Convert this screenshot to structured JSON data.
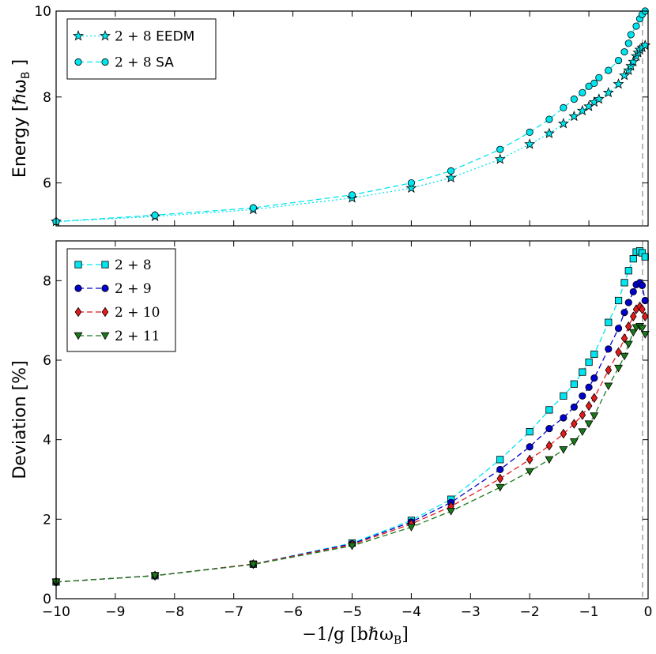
{
  "chart_data": [
    {
      "type": "line",
      "panel": "top",
      "title": "",
      "xlabel": "",
      "ylabel": "Energy [ħω_B]",
      "ylabel_display": "Energy [ℏω",
      "ylabel_sub": "B",
      "ylabel_close": "]",
      "xlim": [
        -10,
        0
      ],
      "ylim": [
        5,
        10
      ],
      "xticks": [
        -10,
        -9,
        -8,
        -7,
        -6,
        -5,
        -4,
        -3,
        -2,
        -1,
        0
      ],
      "yticks": [
        6,
        8,
        10
      ],
      "ytick_labels": [
        "6",
        "8",
        "10"
      ],
      "grid": false,
      "legend_position": "top-left",
      "series": [
        {
          "name": "2+8 EEDM",
          "math": "2 + 8",
          "text": "EEDM",
          "color": "#00e5ee",
          "marker": "star",
          "linestyle": "dotted",
          "x": [
            -10,
            -8.33,
            -6.67,
            -5,
            -4,
            -3.33,
            -2.5,
            -2,
            -1.67,
            -1.43,
            -1.25,
            -1.11,
            -1,
            -0.91,
            -0.83,
            -0.67,
            -0.5,
            -0.4,
            -0.33,
            -0.29,
            -0.25,
            -0.2,
            -0.17,
            -0.14,
            -0.1,
            -0.05
          ],
          "values": [
            5.1,
            5.22,
            5.38,
            5.65,
            5.88,
            6.12,
            6.55,
            6.9,
            7.15,
            7.38,
            7.55,
            7.68,
            7.78,
            7.88,
            7.95,
            8.1,
            8.3,
            8.5,
            8.62,
            8.72,
            8.82,
            8.95,
            9.03,
            9.1,
            9.15,
            9.2
          ]
        },
        {
          "name": "2+8 SA",
          "math": "2 + 8",
          "text": "SA",
          "color": "#00e5ee",
          "marker": "circle",
          "linestyle": "dashed",
          "x": [
            -10,
            -8.33,
            -6.67,
            -5,
            -4,
            -3.33,
            -2.5,
            -2,
            -1.67,
            -1.43,
            -1.25,
            -1.11,
            -1,
            -0.91,
            -0.83,
            -0.67,
            -0.5,
            -0.4,
            -0.33,
            -0.29,
            -0.2,
            -0.14,
            -0.1,
            -0.05
          ],
          "values": [
            5.1,
            5.25,
            5.42,
            5.72,
            6.0,
            6.28,
            6.78,
            7.18,
            7.48,
            7.75,
            7.95,
            8.1,
            8.25,
            8.32,
            8.45,
            8.62,
            8.85,
            9.05,
            9.25,
            9.45,
            9.65,
            9.82,
            9.92,
            10.0
          ]
        }
      ]
    },
    {
      "type": "line",
      "panel": "bottom",
      "title": "",
      "xlabel": "−1/g [bħω_B]",
      "xlabel_display": "−1/g [bℏω",
      "xlabel_sub": "B",
      "xlabel_close": "]",
      "ylabel": "Deviation [%]",
      "xlim": [
        -10,
        0
      ],
      "ylim": [
        0,
        9
      ],
      "xticks": [
        -10,
        -9,
        -8,
        -7,
        -6,
        -5,
        -4,
        -3,
        -2,
        -1,
        0
      ],
      "xtick_labels": [
        "−10",
        "−9",
        "−8",
        "−7",
        "−6",
        "−5",
        "−4",
        "−3",
        "−2",
        "−1",
        "0"
      ],
      "yticks": [
        0,
        2,
        4,
        6,
        8
      ],
      "ytick_labels": [
        "0",
        "2",
        "4",
        "6",
        "8"
      ],
      "grid": false,
      "legend_position": "top-left",
      "series": [
        {
          "name": "2+8",
          "color": "#00e5ee",
          "marker": "square",
          "linestyle": "dashed",
          "x": [
            -10,
            -8.33,
            -6.67,
            -5,
            -4,
            -3.33,
            -2.5,
            -2,
            -1.67,
            -1.43,
            -1.25,
            -1.11,
            -1,
            -0.91,
            -0.67,
            -0.5,
            -0.4,
            -0.33,
            -0.25,
            -0.2,
            -0.14,
            -0.1,
            -0.05
          ],
          "values": [
            0.42,
            0.58,
            0.87,
            1.4,
            1.97,
            2.5,
            3.5,
            4.2,
            4.75,
            5.1,
            5.4,
            5.7,
            5.95,
            6.15,
            6.95,
            7.5,
            7.95,
            8.25,
            8.55,
            8.72,
            8.75,
            8.7,
            8.6
          ]
        },
        {
          "name": "2+9",
          "color": "#0000cd",
          "marker": "circle",
          "linestyle": "dashed",
          "x": [
            -10,
            -8.33,
            -6.67,
            -5,
            -4,
            -3.33,
            -2.5,
            -2,
            -1.67,
            -1.43,
            -1.25,
            -1.11,
            -1,
            -0.91,
            -0.67,
            -0.5,
            -0.4,
            -0.33,
            -0.25,
            -0.2,
            -0.14,
            -0.1,
            -0.05
          ],
          "values": [
            0.42,
            0.58,
            0.87,
            1.38,
            1.93,
            2.42,
            3.25,
            3.82,
            4.28,
            4.55,
            4.82,
            5.1,
            5.32,
            5.55,
            6.28,
            6.8,
            7.2,
            7.45,
            7.72,
            7.9,
            7.95,
            7.88,
            7.5
          ]
        },
        {
          "name": "2+10",
          "color": "#e31a1c",
          "marker": "diamond",
          "linestyle": "dashed",
          "x": [
            -10,
            -8.33,
            -6.67,
            -5,
            -4,
            -3.33,
            -2.5,
            -2,
            -1.67,
            -1.43,
            -1.25,
            -1.11,
            -1,
            -0.91,
            -0.67,
            -0.5,
            -0.4,
            -0.33,
            -0.25,
            -0.2,
            -0.14,
            -0.1,
            -0.05
          ],
          "values": [
            0.42,
            0.58,
            0.87,
            1.36,
            1.88,
            2.32,
            3.02,
            3.5,
            3.85,
            4.15,
            4.4,
            4.62,
            4.85,
            5.05,
            5.75,
            6.2,
            6.55,
            6.85,
            7.1,
            7.28,
            7.35,
            7.28,
            7.1
          ]
        },
        {
          "name": "2+11",
          "color": "#1a7a1a",
          "marker": "triangle-down",
          "linestyle": "dashed",
          "x": [
            -10,
            -8.33,
            -6.67,
            -5,
            -4,
            -3.33,
            -2.5,
            -2,
            -1.67,
            -1.43,
            -1.25,
            -1.11,
            -1,
            -0.91,
            -0.67,
            -0.5,
            -0.4,
            -0.33,
            -0.25,
            -0.2,
            -0.14,
            -0.1,
            -0.05
          ],
          "values": [
            0.42,
            0.58,
            0.86,
            1.33,
            1.8,
            2.2,
            2.8,
            3.2,
            3.5,
            3.75,
            3.95,
            4.2,
            4.4,
            4.6,
            5.35,
            5.8,
            6.1,
            6.4,
            6.7,
            6.82,
            6.85,
            6.8,
            6.65
          ]
        }
      ]
    }
  ]
}
